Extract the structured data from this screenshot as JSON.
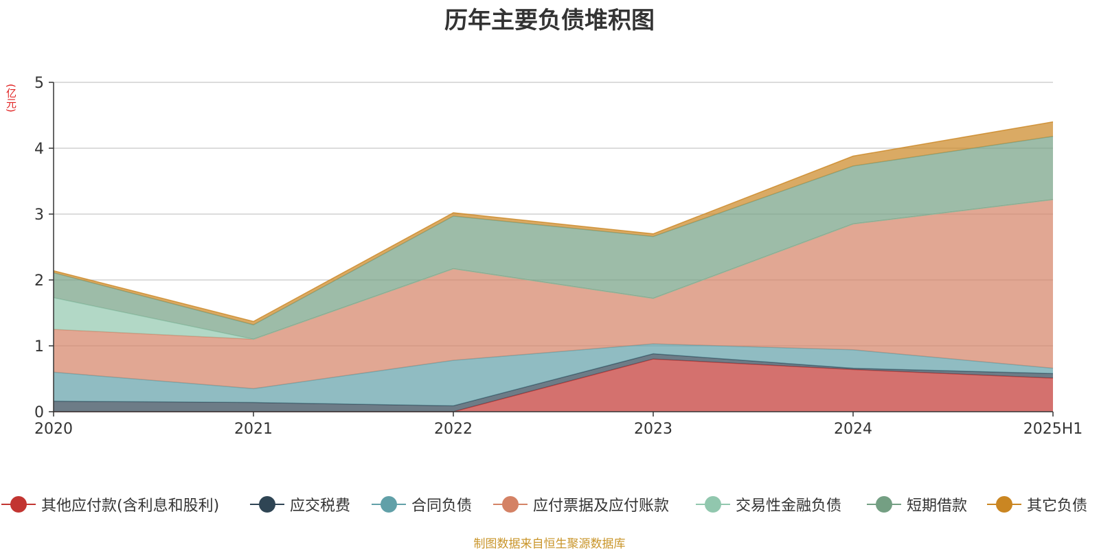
{
  "chart_data": {
    "type": "area",
    "stacked": true,
    "title": "历年主要负债堆积图",
    "ylabel": "(亿元)",
    "xlabel": "",
    "categories": [
      "2020",
      "2021",
      "2022",
      "2023",
      "2024",
      "2025H1"
    ],
    "ylim": [
      0,
      5
    ],
    "yticks": [
      0,
      1,
      2,
      3,
      4,
      5
    ],
    "grid": true,
    "legend_position": "bottom",
    "series": [
      {
        "name": "其他应付款(含利息和股利)",
        "color": "#c23531",
        "values": [
          0.0,
          0.0,
          0.0,
          0.8,
          0.64,
          0.51
        ]
      },
      {
        "name": "应交税费",
        "color": "#2f4554",
        "values": [
          0.16,
          0.14,
          0.09,
          0.08,
          0.02,
          0.07
        ]
      },
      {
        "name": "合同负债",
        "color": "#61a0a8",
        "values": [
          0.44,
          0.21,
          0.69,
          0.15,
          0.28,
          0.08
        ]
      },
      {
        "name": "应付票据及应付账款",
        "color": "#d48265",
        "values": [
          0.65,
          0.75,
          1.39,
          0.69,
          1.91,
          2.56
        ]
      },
      {
        "name": "交易性金融负债",
        "color": "#91c7ae",
        "values": [
          0.48,
          0.0,
          0.0,
          0.0,
          0.0,
          0.0
        ]
      },
      {
        "name": "短期借款",
        "color": "#749f83",
        "values": [
          0.38,
          0.22,
          0.8,
          0.94,
          0.88,
          0.96
        ]
      },
      {
        "name": "其它负债",
        "color": "#ca8622",
        "values": [
          0.03,
          0.05,
          0.05,
          0.04,
          0.15,
          0.22
        ]
      }
    ]
  },
  "source_note": "制图数据来自恒生聚源数据库"
}
